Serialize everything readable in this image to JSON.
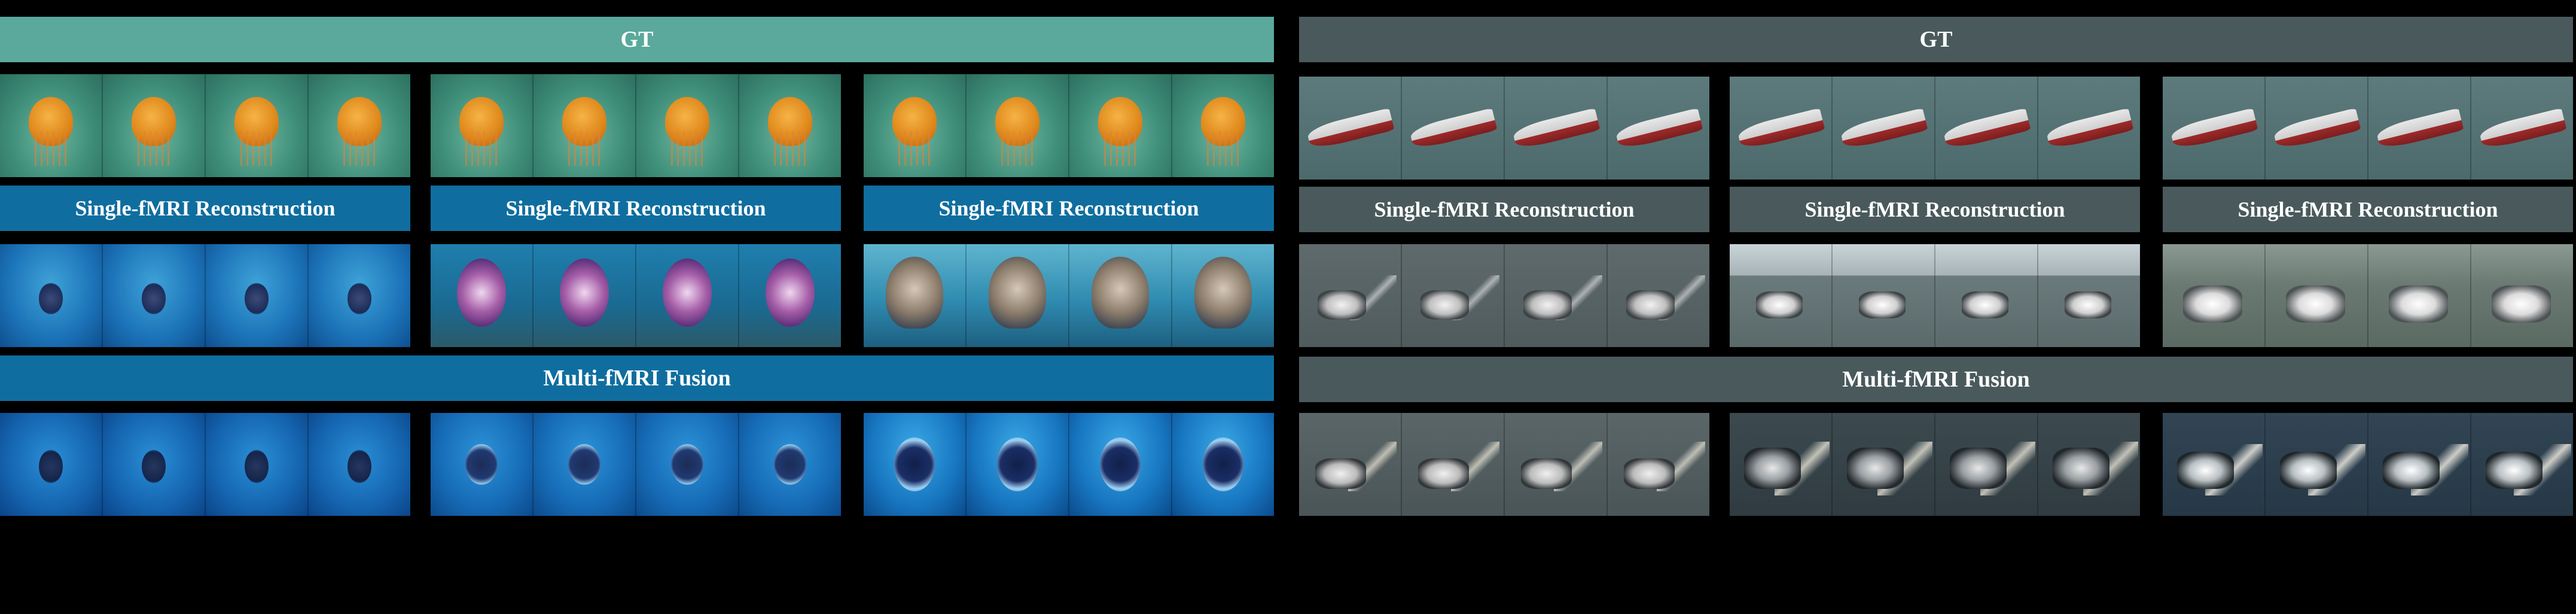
{
  "left": {
    "gt_label": "GT",
    "single_labels": [
      "Single-fMRI Reconstruction",
      "Single-fMRI Reconstruction",
      "Single-fMRI Reconstruction"
    ],
    "fusion_label": "Multi-fMRI Fusion",
    "colors": {
      "gt_bar": "#5aa99c",
      "recon_bar": "#0f6e9f",
      "fusion_bar": "#0f6e9f"
    }
  },
  "right": {
    "gt_label": "GT",
    "single_labels": [
      "Single-fMRI Reconstruction",
      "Single-fMRI Reconstruction",
      "Single-fMRI Reconstruction"
    ],
    "fusion_label": "Multi-fMRI Fusion",
    "colors": {
      "gt_bar": "#4a5a5c",
      "recon_bar": "#4a5a5c",
      "fusion_bar": "#4a5a5c"
    }
  }
}
